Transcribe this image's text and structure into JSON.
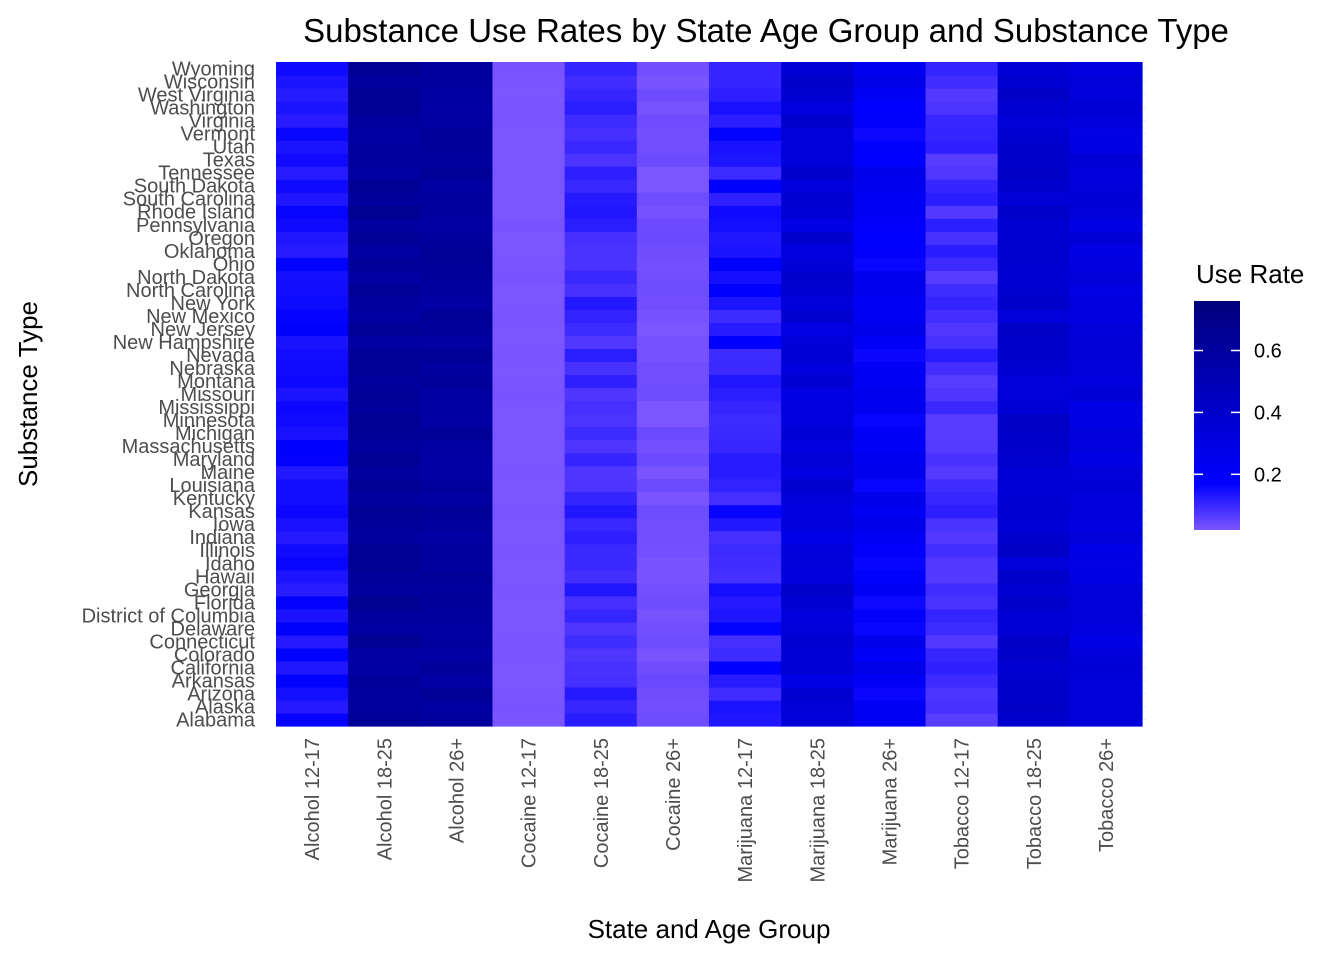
{
  "chart_data": {
    "type": "heatmap",
    "title": "Substance Use Rates by State Age Group and Substance Type",
    "xlabel": "State and Age Group",
    "ylabel": "Substance Type",
    "x_categories": [
      "Alcohol 12-17",
      "Alcohol 18-25",
      "Alcohol 26+",
      "Cocaine 12-17",
      "Cocaine 18-25",
      "Cocaine 26+",
      "Marijuana 12-17",
      "Marijuana 18-25",
      "Marijuana 26+",
      "Tobacco 12-17",
      "Tobacco 18-25",
      "Tobacco 26+"
    ],
    "y_categories": [
      "Alabama",
      "Alaska",
      "Arizona",
      "Arkansas",
      "California",
      "Colorado",
      "Connecticut",
      "Delaware",
      "District of Columbia",
      "Florida",
      "Georgia",
      "Hawaii",
      "Idaho",
      "Illinois",
      "Indiana",
      "Iowa",
      "Kansas",
      "Kentucky",
      "Louisiana",
      "Maine",
      "Maryland",
      "Massachusetts",
      "Michigan",
      "Minnesota",
      "Mississippi",
      "Missouri",
      "Montana",
      "Nebraska",
      "Nevada",
      "New Hampshire",
      "New Jersey",
      "New Mexico",
      "New York",
      "North Carolina",
      "North Dakota",
      "Ohio",
      "Oklahoma",
      "Oregon",
      "Pennsylvania",
      "Rhode Island",
      "South Carolina",
      "South Dakota",
      "Tennessee",
      "Texas",
      "Utah",
      "Vermont",
      "Virginia",
      "Washington",
      "West Virginia",
      "Wisconsin",
      "Wyoming"
    ],
    "column_baseline": [
      0.15,
      0.62,
      0.6,
      0.02,
      0.1,
      0.03,
      0.13,
      0.34,
      0.21,
      0.09,
      0.38,
      0.32
    ],
    "column_variation": [
      0.03,
      0.04,
      0.03,
      0.004,
      0.03,
      0.012,
      0.05,
      0.06,
      0.06,
      0.03,
      0.04,
      0.04
    ],
    "color_scale": {
      "low": "#7b55ff",
      "mid": "#0000ff",
      "high": "#00007b",
      "min": 0.02,
      "mid_value": 0.17,
      "max": 0.76
    },
    "legend": {
      "title": "Use Rate",
      "ticks": [
        0.2,
        0.4,
        0.6
      ],
      "tick_labels": [
        "0.2",
        "0.4",
        "0.6"
      ],
      "position": "right"
    },
    "grid": true
  }
}
